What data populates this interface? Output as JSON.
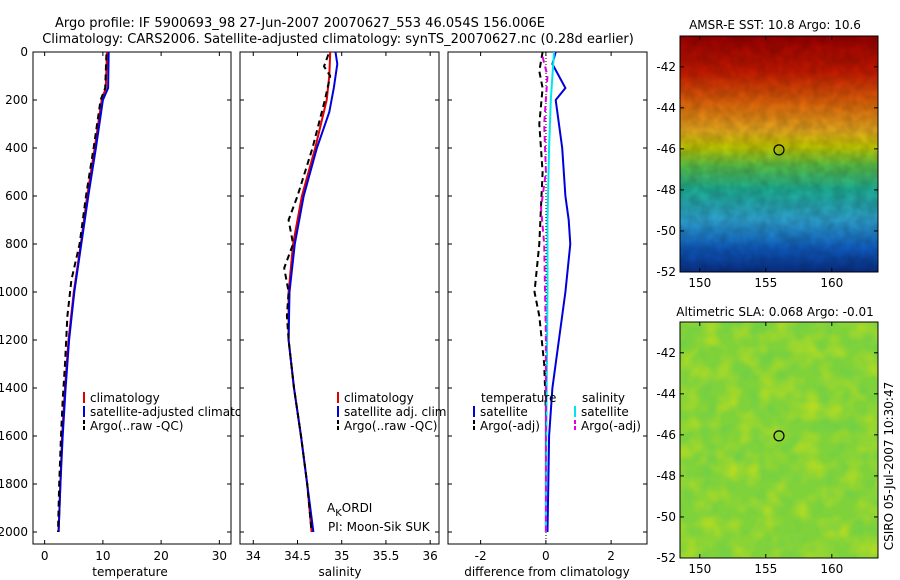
{
  "title": {
    "line1": "Argo profile: IF 5900693_98 27-Jun-2007 20070627_553 46.054S 156.006E",
    "line2": "Climatology: CARS2006. Satellite-adjusted climatology: synTS_20070627.nc (0.28d earlier)"
  },
  "credit": "CSIRO 05-Jul-2007 10:30:47",
  "pi": {
    "name_main": "A",
    "name_sub": "K",
    "name_rest": "ORDI",
    "pi_line": "PI: Moon-Sik SUK"
  },
  "colors": {
    "climatology": "#e00000",
    "satellite": "#0000dd",
    "argo": "#000000",
    "sal_sat": "#00e5ee",
    "sal_argo": "#dd00dd"
  },
  "chart_data": [
    {
      "type": "line",
      "name": "temperature-panel",
      "xlabel": "temperature",
      "xlim": [
        -2,
        32
      ],
      "ylim": [
        2050,
        0
      ],
      "xticks": [
        0,
        10,
        20,
        30
      ],
      "yticks": [
        0,
        200,
        400,
        600,
        800,
        1000,
        1200,
        1400,
        1600,
        1800,
        2000
      ],
      "legend": [
        "climatology",
        "satellite-adjusted climatology",
        "Argo(..raw -QC)"
      ],
      "series": [
        {
          "name": "climatology",
          "color": "#e00000",
          "dash": "",
          "points": [
            [
              10.7,
              0
            ],
            [
              10.5,
              150
            ],
            [
              9.8,
              200
            ],
            [
              8.6,
              400
            ],
            [
              7.3,
              600
            ],
            [
              6.2,
              800
            ],
            [
              5.0,
              1000
            ],
            [
              4.1,
              1200
            ],
            [
              3.5,
              1400
            ],
            [
              3.0,
              1600
            ],
            [
              2.7,
              1800
            ],
            [
              2.4,
              2000
            ]
          ]
        },
        {
          "name": "satellite-adjusted climatology",
          "color": "#0000dd",
          "dash": "",
          "points": [
            [
              11.0,
              0
            ],
            [
              10.9,
              150
            ],
            [
              10.0,
              200
            ],
            [
              8.8,
              400
            ],
            [
              7.5,
              600
            ],
            [
              6.3,
              800
            ],
            [
              5.1,
              1000
            ],
            [
              4.2,
              1200
            ],
            [
              3.6,
              1400
            ],
            [
              3.1,
              1600
            ],
            [
              2.7,
              1800
            ],
            [
              2.4,
              2000
            ]
          ]
        },
        {
          "name": "Argo(..raw -QC)",
          "color": "#000000",
          "dash": "6,4",
          "points": [
            [
              10.6,
              10
            ],
            [
              10.4,
              150
            ],
            [
              9.6,
              200
            ],
            [
              8.4,
              400
            ],
            [
              7.1,
              600
            ],
            [
              6.0,
              800
            ],
            [
              4.6,
              950
            ],
            [
              3.9,
              1100
            ],
            [
              3.5,
              1300
            ],
            [
              3.1,
              1450
            ],
            [
              2.8,
              1600
            ],
            [
              2.5,
              1800
            ],
            [
              2.3,
              2000
            ]
          ]
        }
      ]
    },
    {
      "type": "line",
      "name": "salinity-panel",
      "xlabel": "salinity",
      "xlim": [
        33.85,
        36.1
      ],
      "ylim": [
        2050,
        0
      ],
      "xticks": [
        34,
        34.5,
        35,
        35.5,
        36
      ],
      "legend": [
        "climatology",
        "satellite adj. clim.",
        "Argo(..raw -QC)"
      ],
      "series": [
        {
          "name": "climatology",
          "color": "#e00000",
          "dash": "",
          "points": [
            [
              34.87,
              0
            ],
            [
              34.86,
              100
            ],
            [
              34.83,
              200
            ],
            [
              34.7,
              400
            ],
            [
              34.55,
              600
            ],
            [
              34.45,
              800
            ],
            [
              34.4,
              1000
            ],
            [
              34.4,
              1200
            ],
            [
              34.46,
              1400
            ],
            [
              34.54,
              1600
            ],
            [
              34.61,
              1800
            ],
            [
              34.66,
              2000
            ]
          ]
        },
        {
          "name": "satellite adj. clim.",
          "color": "#0000dd",
          "dash": "",
          "points": [
            [
              34.93,
              0
            ],
            [
              34.95,
              50
            ],
            [
              34.91,
              150
            ],
            [
              34.86,
              250
            ],
            [
              34.72,
              400
            ],
            [
              34.57,
              600
            ],
            [
              34.47,
              800
            ],
            [
              34.41,
              1000
            ],
            [
              34.4,
              1200
            ],
            [
              34.46,
              1400
            ],
            [
              34.54,
              1600
            ],
            [
              34.61,
              1800
            ],
            [
              34.68,
              2000
            ]
          ]
        },
        {
          "name": "Argo(..raw -QC)",
          "color": "#000000",
          "dash": "6,4",
          "points": [
            [
              34.85,
              10
            ],
            [
              34.8,
              60
            ],
            [
              34.87,
              100
            ],
            [
              34.81,
              200
            ],
            [
              34.67,
              400
            ],
            [
              34.5,
              600
            ],
            [
              34.4,
              700
            ],
            [
              34.45,
              800
            ],
            [
              34.35,
              900
            ],
            [
              34.4,
              1000
            ],
            [
              34.38,
              1100
            ],
            [
              34.4,
              1200
            ],
            [
              34.46,
              1400
            ],
            [
              34.54,
              1600
            ],
            [
              34.61,
              1800
            ],
            [
              34.66,
              2000
            ]
          ]
        }
      ]
    },
    {
      "type": "line",
      "name": "difference-panel",
      "xlabel": "difference from climatology",
      "xlim": [
        -3,
        3.1
      ],
      "ylim": [
        2050,
        0
      ],
      "xticks": [
        -2,
        0,
        2
      ],
      "legend": [
        "temperature",
        "satellite",
        "Argo(-adj)",
        "salinity",
        "satellite",
        "Argo(-adj)"
      ],
      "series": [
        {
          "name": "temperature satellite",
          "color": "#0000dd",
          "dash": "",
          "points": [
            [
              0.3,
              0
            ],
            [
              0.2,
              50
            ],
            [
              0.6,
              150
            ],
            [
              0.3,
              200
            ],
            [
              0.5,
              400
            ],
            [
              0.6,
              600
            ],
            [
              0.7,
              700
            ],
            [
              0.75,
              800
            ],
            [
              0.6,
              1000
            ],
            [
              0.4,
              1200
            ],
            [
              0.2,
              1400
            ],
            [
              0.1,
              1600
            ],
            [
              0.05,
              2000
            ]
          ]
        },
        {
          "name": "temperature Argo(-adj)",
          "color": "#000000",
          "dash": "6,4",
          "points": [
            [
              -0.1,
              0
            ],
            [
              -0.2,
              80
            ],
            [
              -0.1,
              150
            ],
            [
              -0.2,
              300
            ],
            [
              -0.1,
              500
            ],
            [
              -0.2,
              800
            ],
            [
              -0.35,
              1000
            ],
            [
              -0.2,
              1100
            ],
            [
              -0.05,
              1300
            ],
            [
              0,
              1500
            ],
            [
              0,
              2000
            ]
          ]
        },
        {
          "name": "salinity satellite",
          "color": "#00e5ee",
          "dash": "",
          "points": [
            [
              0.25,
              0
            ],
            [
              0.2,
              100
            ],
            [
              0.15,
              200
            ],
            [
              0.1,
              400
            ],
            [
              0.05,
              700
            ],
            [
              0.05,
              1000
            ],
            [
              0.02,
              1500
            ],
            [
              0,
              2000
            ]
          ]
        },
        {
          "name": "salinity Argo(-adj)",
          "color": "#dd00dd",
          "dash": "6,4",
          "points": [
            [
              -0.1,
              20
            ],
            [
              0.05,
              100
            ],
            [
              -0.05,
              300
            ],
            [
              0,
              500
            ],
            [
              -0.15,
              650
            ],
            [
              -0.05,
              800
            ],
            [
              0,
              1200
            ],
            [
              0,
              2000
            ]
          ]
        }
      ]
    },
    {
      "type": "heatmap",
      "name": "sst-map",
      "title": "AMSR-E SST: 10.8  Argo: 10.6",
      "xlim": [
        148.5,
        163.5
      ],
      "ylim": [
        -52,
        -40.5
      ],
      "xticks": [
        150,
        155,
        160
      ],
      "yticks": [
        -42,
        -44,
        -46,
        -48,
        -50,
        -52
      ],
      "marker": {
        "lon": 156.0,
        "lat": -46.05
      }
    },
    {
      "type": "heatmap",
      "name": "sla-map",
      "title": "Altimetric SLA: 0.068  Argo: -0.01",
      "xlim": [
        148.5,
        163.5
      ],
      "ylim": [
        -52,
        -40.5
      ],
      "xticks": [
        150,
        155,
        160
      ],
      "yticks": [
        -42,
        -44,
        -46,
        -48,
        -50,
        -52
      ],
      "marker": {
        "lon": 156.0,
        "lat": -46.05
      }
    }
  ]
}
